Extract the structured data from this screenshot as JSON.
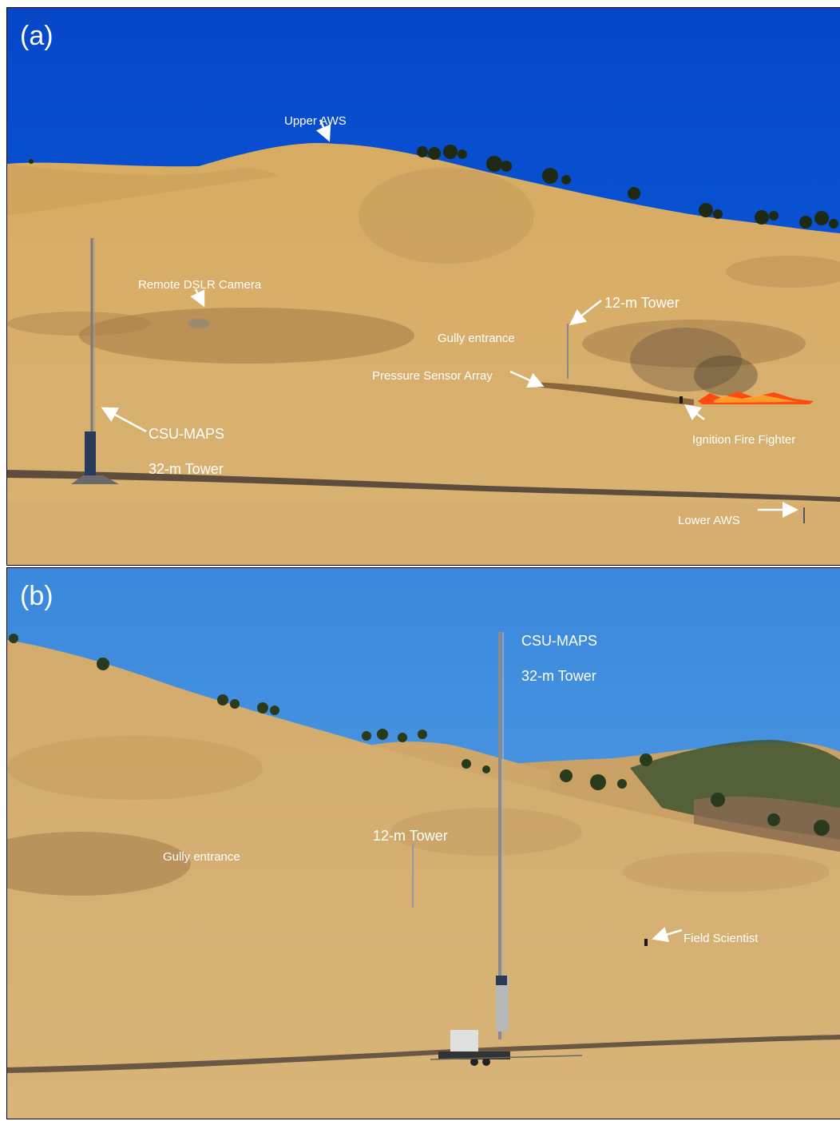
{
  "panel_a": {
    "label": "(a)",
    "annotations": {
      "upper_aws": "Upper AWS",
      "remote_camera": "Remote DSLR Camera",
      "tower_12m": "12-m Tower",
      "gully_entrance": "Gully entrance",
      "pressure_array": "Pressure Sensor Array",
      "csu_maps": "CSU-MAPS",
      "tower_32m": "32-m Tower",
      "ignition_fighter": "Ignition Fire Fighter",
      "lower_aws": "Lower AWS"
    }
  },
  "panel_b": {
    "label": "(b)",
    "annotations": {
      "csu_maps": "CSU-MAPS",
      "tower_32m": "32-m Tower",
      "tower_12m": "12-m Tower",
      "gully_entrance": "Gully entrance",
      "field_scientist": "Field Scientist"
    }
  },
  "colors": {
    "sky_a": "#0a55d4",
    "sky_b": "#3d8fe0",
    "grass": "#d6ae6a",
    "grass_dark": "#b78f55",
    "fire": "#ff5a1a",
    "road": "#5a4a3a"
  }
}
